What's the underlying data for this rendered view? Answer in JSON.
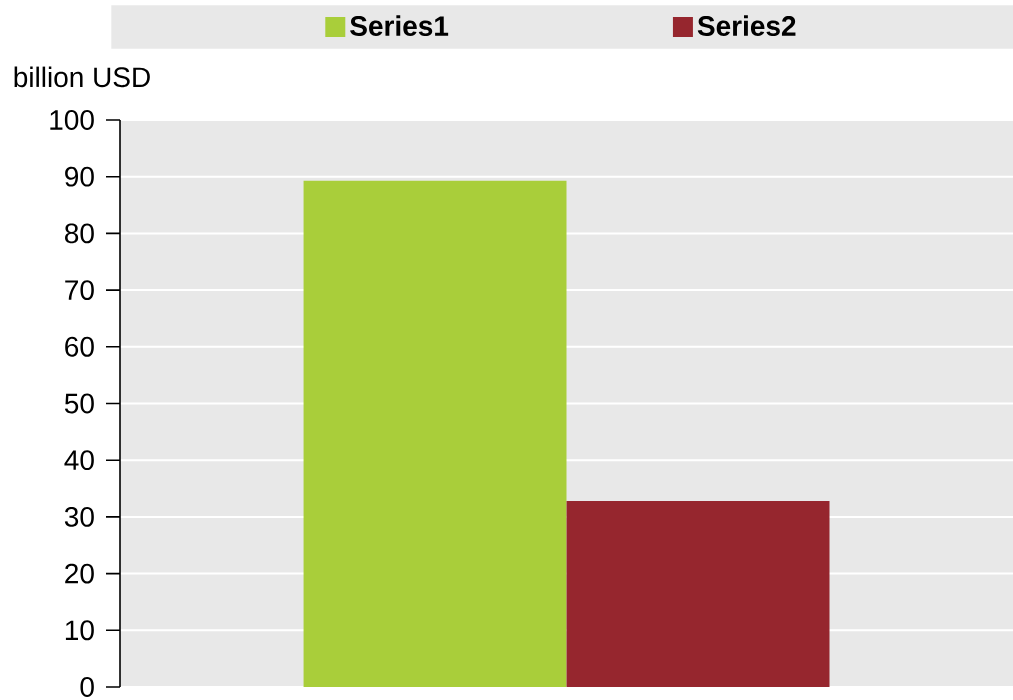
{
  "chart_data": {
    "type": "bar",
    "ylabel": "billion USD",
    "categories": [
      null
    ],
    "series": [
      {
        "name": "Series1",
        "color": "#a9ce3a",
        "values": [
          89.3
        ]
      },
      {
        "name": "Series2",
        "color": "#96262e",
        "values": [
          32.8
        ]
      }
    ],
    "ylim": [
      0,
      100
    ],
    "yticks": [
      0,
      10,
      20,
      30,
      40,
      50,
      60,
      70,
      80,
      90,
      100
    ],
    "grid": "y",
    "legend": "top"
  }
}
